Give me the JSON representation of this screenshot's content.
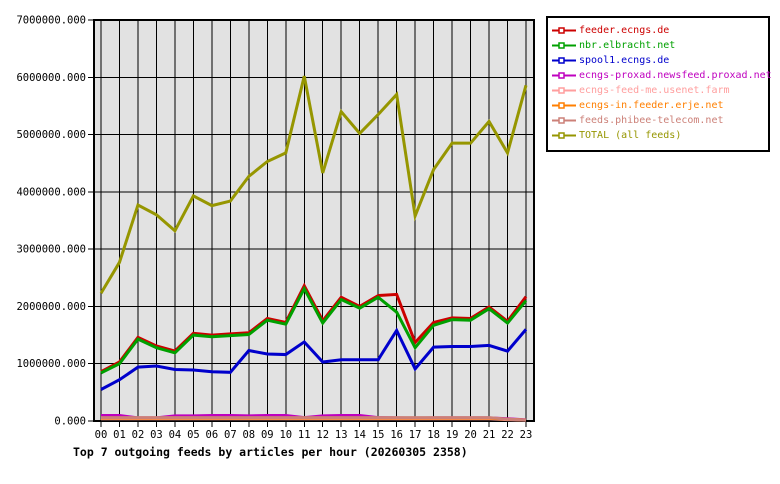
{
  "chart_data": {
    "type": "line",
    "title": "Top 7 outgoing feeds by articles per hour (20260305 2358)",
    "x_labels": [
      "00",
      "01",
      "02",
      "03",
      "04",
      "05",
      "06",
      "07",
      "08",
      "09",
      "10",
      "11",
      "12",
      "13",
      "14",
      "15",
      "16",
      "17",
      "18",
      "19",
      "20",
      "21",
      "22",
      "23"
    ],
    "y_axis": {
      "min": 0,
      "max": 7000000,
      "tick_step": 1000000,
      "tick_labels": [
        "0.000",
        "1000000.000",
        "2000000.000",
        "3000000.000",
        "4000000.000",
        "5000000.000",
        "6000000.000",
        "7000000.000"
      ]
    },
    "plot": {
      "bg": "#e2e2e2",
      "grid_color": "#000000",
      "border_color": "#000000",
      "outer_bg": "#ffffff"
    },
    "grid": true,
    "legend_position": "top-right",
    "series": [
      {
        "name": "feeder.ecngs.de",
        "color": "#cc0000",
        "values": [
          860000,
          1030000,
          1460000,
          1310000,
          1220000,
          1530000,
          1500000,
          1520000,
          1540000,
          1790000,
          1720000,
          2360000,
          1750000,
          2160000,
          2000000,
          2190000,
          2210000,
          1370000,
          1720000,
          1800000,
          1790000,
          1990000,
          1740000,
          2170000
        ]
      },
      {
        "name": "nbr.elbracht.net",
        "color": "#00a000",
        "values": [
          840000,
          1000000,
          1430000,
          1280000,
          1190000,
          1500000,
          1470000,
          1490000,
          1510000,
          1760000,
          1690000,
          2310000,
          1710000,
          2120000,
          1970000,
          2160000,
          1900000,
          1280000,
          1670000,
          1770000,
          1760000,
          1960000,
          1710000,
          2100000
        ]
      },
      {
        "name": "spool1.ecngs.de",
        "color": "#0000cc",
        "values": [
          550000,
          720000,
          940000,
          960000,
          900000,
          890000,
          860000,
          850000,
          1230000,
          1170000,
          1160000,
          1380000,
          1030000,
          1070000,
          1070000,
          1070000,
          1580000,
          910000,
          1290000,
          1300000,
          1300000,
          1320000,
          1220000,
          1600000
        ]
      },
      {
        "name": "ecngs-proxad.newsfeed.proxad.net",
        "color": "#bf00bf",
        "values": [
          95000,
          95000,
          55000,
          55000,
          90000,
          90000,
          95000,
          95000,
          90000,
          95000,
          95000,
          60000,
          90000,
          95000,
          95000,
          60000,
          55000,
          50000,
          55000,
          55000,
          55000,
          55000,
          40000,
          20000
        ]
      },
      {
        "name": "ecngs-feed-me.usenet.farm",
        "color": "#ff9e9e",
        "values": [
          40000,
          40000,
          40000,
          40000,
          40000,
          40000,
          40000,
          40000,
          40000,
          40000,
          40000,
          40000,
          40000,
          40000,
          40000,
          40000,
          40000,
          40000,
          40000,
          40000,
          40000,
          40000,
          25000,
          15000
        ]
      },
      {
        "name": "ecngs-in.feeder.erje.net",
        "color": "#ff7f00",
        "values": [
          50000,
          50000,
          50000,
          50000,
          50000,
          50000,
          50000,
          50000,
          50000,
          50000,
          50000,
          50000,
          50000,
          50000,
          50000,
          50000,
          50000,
          50000,
          50000,
          50000,
          50000,
          50000,
          30000,
          18000
        ]
      },
      {
        "name": "feeds.phibee-telecom.net",
        "color": "#cc8078",
        "values": [
          60000,
          60000,
          60000,
          60000,
          60000,
          60000,
          60000,
          60000,
          60000,
          60000,
          60000,
          60000,
          60000,
          60000,
          60000,
          60000,
          60000,
          60000,
          60000,
          60000,
          60000,
          60000,
          30000,
          15000
        ]
      },
      {
        "name": "TOTAL (all feeds)",
        "color": "#969600",
        "values": [
          2230000,
          2770000,
          3770000,
          3600000,
          3320000,
          3930000,
          3760000,
          3840000,
          4270000,
          4530000,
          4680000,
          6020000,
          4330000,
          5400000,
          5020000,
          5350000,
          5700000,
          3580000,
          4390000,
          4850000,
          4850000,
          5230000,
          4680000,
          5860000
        ]
      }
    ]
  }
}
